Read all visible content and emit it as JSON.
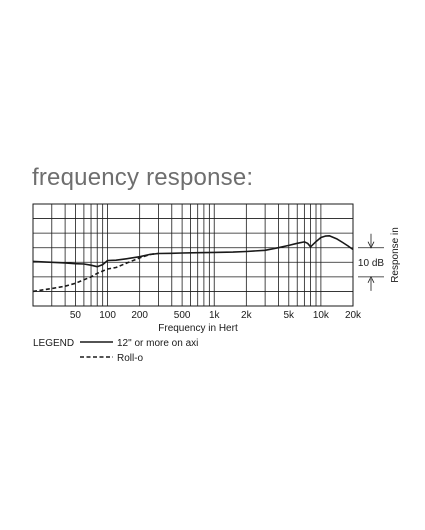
{
  "heading": "frequency response:",
  "chart_data": {
    "type": "line",
    "xlabel": "Frequency in Hert",
    "ylabel": "Response in",
    "x_scale": "log",
    "xlim": [
      20,
      20000
    ],
    "ylim": [
      -20,
      15
    ],
    "grid": true,
    "x_ticks": [
      {
        "value": 50,
        "label": "50"
      },
      {
        "value": 100,
        "label": "100"
      },
      {
        "value": 200,
        "label": "200"
      },
      {
        "value": 500,
        "label": "500"
      },
      {
        "value": 1000,
        "label": "1k"
      },
      {
        "value": 2000,
        "label": "2k"
      },
      {
        "value": 5000,
        "label": "5k"
      },
      {
        "value": 10000,
        "label": "10k"
      },
      {
        "value": 20000,
        "label": "20k"
      }
    ],
    "scale_marker": {
      "label": "10 dB",
      "from": 0,
      "to": -10
    },
    "series": [
      {
        "name": "12\" or more on axi",
        "style": "solid",
        "x": [
          20,
          30,
          40,
          50,
          60,
          70,
          80,
          90,
          100,
          120,
          150,
          200,
          250,
          300,
          400,
          500,
          700,
          1000,
          1500,
          2000,
          3000,
          4000,
          5000,
          6000,
          7000,
          7500,
          8000,
          9000,
          10000,
          11000,
          12000,
          14000,
          16000,
          18000,
          20000
        ],
        "y": [
          -4.7,
          -5.0,
          -5.2,
          -5.5,
          -5.6,
          -6.0,
          -6.5,
          -5.8,
          -4.4,
          -4.3,
          -3.8,
          -3.1,
          -2.3,
          -2.0,
          -1.9,
          -1.8,
          -1.7,
          -1.6,
          -1.5,
          -1.3,
          -0.9,
          0.0,
          0.8,
          1.5,
          2.0,
          1.5,
          0.3,
          2.1,
          3.5,
          4.0,
          4.1,
          3.1,
          1.8,
          0.6,
          -0.6
        ]
      },
      {
        "name": "Roll-o",
        "style": "dashed",
        "x": [
          20,
          30,
          40,
          50,
          60,
          70,
          80,
          90,
          100,
          120,
          150,
          200,
          250,
          300
        ],
        "y": [
          -15.0,
          -14.0,
          -13.2,
          -12.2,
          -11.0,
          -10.0,
          -8.8,
          -8.0,
          -7.3,
          -6.8,
          -5.3,
          -3.5,
          -2.3,
          -2.0
        ]
      }
    ],
    "legend": {
      "title": "LEGEND",
      "placement": "bottom-left"
    }
  },
  "colors": {
    "line": "#1a1a1a",
    "grid": "#1a1a1a",
    "heading": "#6e6e6e"
  }
}
